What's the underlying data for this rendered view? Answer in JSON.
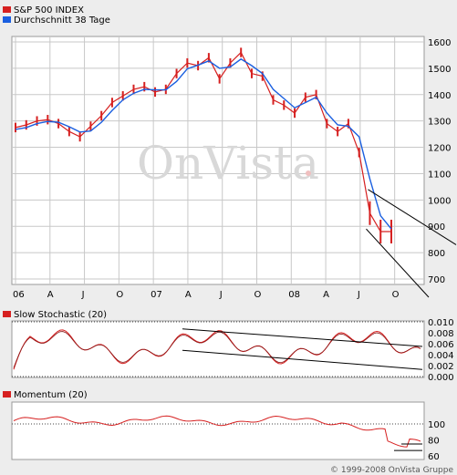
{
  "footer": {
    "copyright": "© 1999-2008 OnVista Gruppe"
  },
  "watermark": "OnVista",
  "colors": {
    "price": "#d62020",
    "average": "#1a5fe0",
    "grid": "#c8c8c8",
    "background": "#ffffff",
    "frame": "#ededed"
  },
  "chart_data": [
    {
      "type": "line",
      "panel": "price",
      "legend": [
        {
          "name": "S&P 500 INDEX",
          "color": "#d62020"
        },
        {
          "name": "Durchschnitt 38 Tage",
          "color": "#1a5fe0"
        }
      ],
      "x_ticks": [
        "06",
        "A",
        "J",
        "O",
        "07",
        "A",
        "J",
        "O",
        "08",
        "A",
        "J",
        "O"
      ],
      "y_ticks": [
        1600,
        1500,
        1400,
        1300,
        1200,
        1100,
        1000,
        900,
        800,
        700
      ],
      "ylim": [
        700,
        1600
      ],
      "x": [
        "2006-01",
        "2006-02",
        "2006-03",
        "2006-04",
        "2006-05",
        "2006-06",
        "2006-07",
        "2006-08",
        "2006-09",
        "2006-10",
        "2006-11",
        "2006-12",
        "2007-01",
        "2007-02",
        "2007-03",
        "2007-04",
        "2007-05",
        "2007-06",
        "2007-07",
        "2007-08",
        "2007-09",
        "2007-10",
        "2007-11",
        "2007-12",
        "2008-01",
        "2008-02",
        "2008-03",
        "2008-04",
        "2008-05",
        "2008-06",
        "2008-07",
        "2008-08",
        "2008-09",
        "2008-10",
        "2008-11",
        "2008-12"
      ],
      "series": [
        {
          "name": "S&P 500 INDEX",
          "values": [
            1275,
            1285,
            1300,
            1305,
            1290,
            1260,
            1240,
            1280,
            1320,
            1370,
            1395,
            1420,
            1430,
            1410,
            1420,
            1480,
            1520,
            1510,
            1540,
            1460,
            1520,
            1560,
            1480,
            1470,
            1380,
            1360,
            1330,
            1390,
            1400,
            1290,
            1260,
            1290,
            1180,
            950,
            880,
            880
          ]
        },
        {
          "name": "Durchschnitt 38 Tage",
          "values": [
            1268,
            1275,
            1290,
            1298,
            1295,
            1278,
            1258,
            1262,
            1295,
            1340,
            1380,
            1405,
            1420,
            1418,
            1418,
            1450,
            1498,
            1512,
            1528,
            1500,
            1505,
            1535,
            1510,
            1480,
            1420,
            1385,
            1350,
            1370,
            1390,
            1330,
            1285,
            1280,
            1240,
            1080,
            940,
            890
          ]
        }
      ]
    },
    {
      "type": "line",
      "panel": "slow-stochastic",
      "title": "Slow Stochastic (20)",
      "y_ticks": [
        0.01,
        0.008,
        0.006,
        0.004,
        0.002,
        0.0
      ],
      "ylim": [
        0,
        0.01
      ]
    },
    {
      "type": "line",
      "panel": "momentum",
      "title": "Momentum (20)",
      "y_ticks": [
        100,
        80,
        60
      ],
      "ylim": [
        58,
        125
      ],
      "reference_line": 100
    }
  ]
}
